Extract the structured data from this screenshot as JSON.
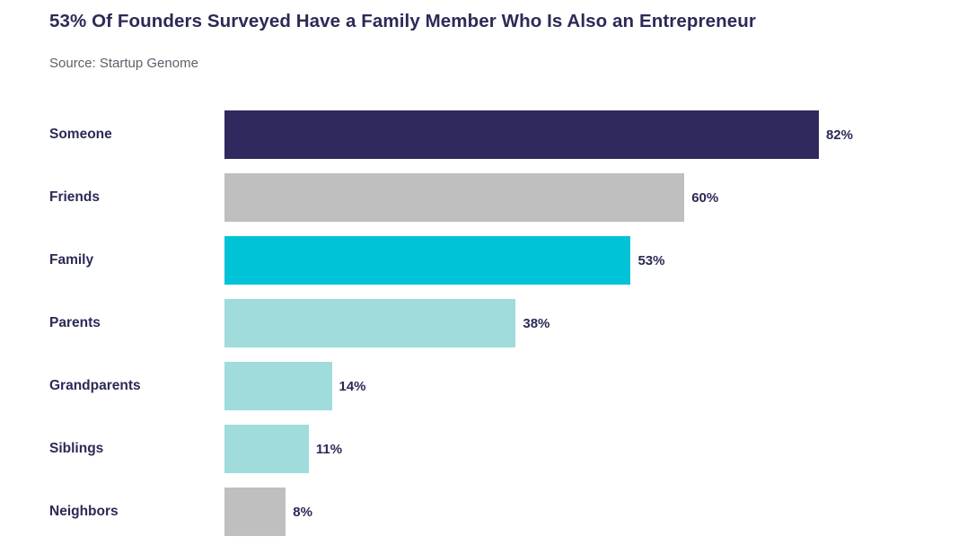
{
  "header": {
    "title": "53% Of Founders Surveyed Have a Family Member Who Is Also an Entrepreneur",
    "source": "Source: Startup Genome"
  },
  "colors": {
    "title_text": "#2b2a57",
    "source_text": "#605e6b",
    "navy": "#2e2a5e",
    "gray": "#bfbfbf",
    "cyan": "#00c3d8",
    "light_teal": "#9fdcdb",
    "background": "#ffffff"
  },
  "chart_data": {
    "type": "bar",
    "orientation": "horizontal",
    "title": "53% Of Founders Surveyed Have a Family Member Who Is Also an Entrepreneur",
    "source": "Source: Startup Genome",
    "categories": [
      "Someone",
      "Friends",
      "Family",
      "Parents",
      "Grandparents",
      "Siblings",
      "Neighbors"
    ],
    "values": [
      82,
      60,
      53,
      38,
      14,
      11,
      8
    ],
    "value_labels": [
      "82%",
      "60%",
      "53%",
      "38%",
      "14%",
      "11%",
      "8%"
    ],
    "bar_colors": [
      "#2e2a5e",
      "#bfbfbf",
      "#00c3d8",
      "#9fdcdb",
      "#9fdcdb",
      "#9fdcdb",
      "#bfbfbf"
    ],
    "xlim": [
      0,
      82
    ],
    "grid": false,
    "legend": false,
    "value_label_position": "end-of-bar"
  }
}
